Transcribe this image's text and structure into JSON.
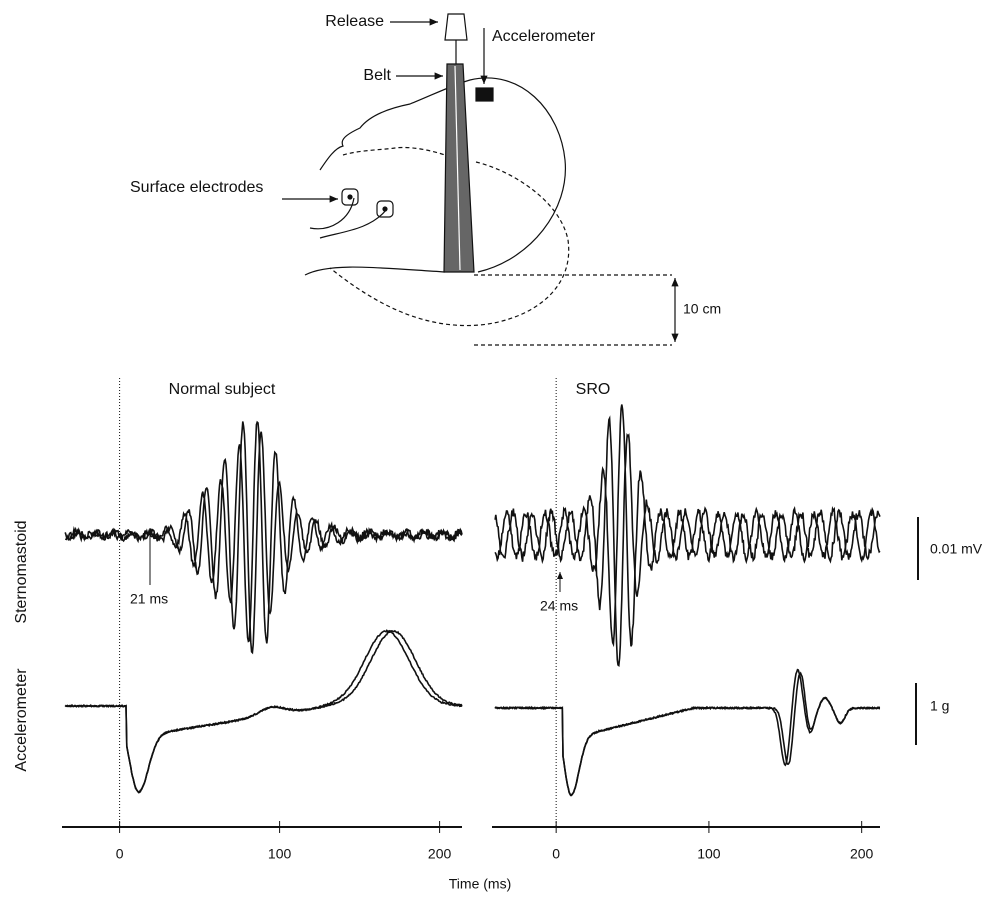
{
  "diagram": {
    "release": "Release",
    "belt": "Belt",
    "accelerometer": "Accelerometer",
    "electrodes": "Surface electrodes",
    "distance": "10 cm"
  },
  "rows": {
    "top": "Sternomastoid",
    "bottom": "Accelerometer"
  },
  "scale_bars": {
    "top": "0.01 mV",
    "bottom": "1 g"
  },
  "x_axis": {
    "label": "Time (ms)",
    "ticks": [
      0,
      100,
      200
    ]
  },
  "panels": [
    {
      "title": "Normal subject",
      "onset": "21 ms",
      "xlim": [
        -36,
        214
      ]
    },
    {
      "title": "SRO",
      "onset": "24 ms",
      "xlim": [
        -42,
        212
      ]
    }
  ]
}
